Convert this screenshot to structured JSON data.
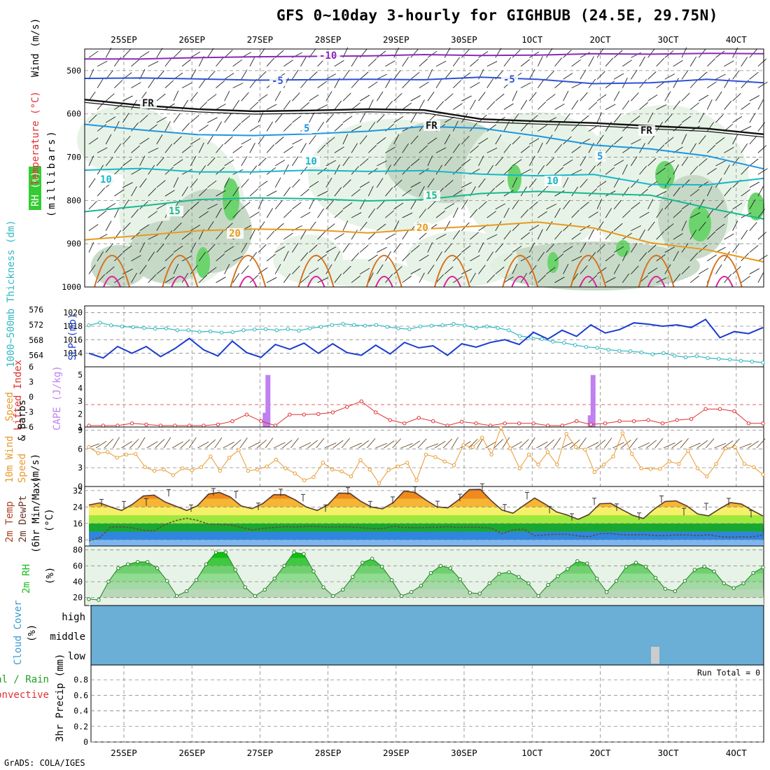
{
  "title": "GFS 0~10day 3-hourly for GIGHBUB (24.5E, 29.75N)",
  "credit": "GrADS: COLA/IGES",
  "colors": {
    "temp_neg10": "#8a2ab8",
    "temp_neg5": "#2f52d6",
    "temp_5": "#1e96e0",
    "temp_10": "#16b8c8",
    "temp_15": "#18b890",
    "temp_20": "#e89a1e",
    "temp_25": "#e0209a",
    "rh_light": "#e4f2e4",
    "rh_mid": "#c2d6c2",
    "rh_dark": "#a0b4a0",
    "rh_green": "#6cd46c",
    "slp": "#1a3cd0",
    "thickness": "#30b8c0",
    "lifted": "#e03030",
    "cape": "#c080f0",
    "wind10m": "#e89a30",
    "rh2m": "#20c020",
    "cloud": "#6baed6"
  },
  "chart_data": {
    "type": "meteogram",
    "x_dates": [
      "25SEP",
      "26SEP",
      "27SEP",
      "28SEP",
      "29SEP",
      "30SEP",
      "1OCT",
      "2OCT",
      "3OCT",
      "4OCT"
    ],
    "x_date_labels": [
      "25SEP",
      "26SEP",
      "27SEP",
      "28SEP",
      "29SEP",
      "30SEP",
      "1OCT",
      "2OCT",
      "3OCT",
      "4OCT"
    ],
    "panels": [
      {
        "id": "upper_air",
        "ylabel_parts": [
          "Wind (m/s)",
          "Temperature (°C)",
          "RH (%)",
          "(millibars)"
        ],
        "ylim": [
          1000,
          450
        ],
        "yticks": [
          500,
          600,
          700,
          800,
          900,
          1000
        ],
        "contour_labels": [
          "-10",
          "-5",
          "-5",
          "FR",
          "FR",
          "FR",
          "5",
          "5",
          "10",
          "10",
          "10",
          "15",
          "15",
          "20",
          "20"
        ],
        "isotherms": [
          {
            "name": "-10",
            "values": [
              473,
              473,
              470,
              468,
              467,
              466,
              463,
              465,
              464,
              461,
              462,
              460,
              461
            ]
          },
          {
            "name": "-5",
            "values": [
              518,
              517,
              519,
              522,
              521,
              520,
              521,
              515,
              520,
              530,
              528,
              520,
              528
            ]
          },
          {
            "name": "FR",
            "values": [
              567,
              580,
              589,
              594,
              592,
              589,
              591,
              612,
              617,
              621,
              628,
              634,
              647
            ]
          },
          {
            "name": "5",
            "values": [
              624,
              637,
              648,
              650,
              646,
              640,
              629,
              633,
              651,
              672,
              681,
              697,
              727
            ]
          },
          {
            "name": "10",
            "values": [
              730,
              726,
              734,
              734,
              730,
              733,
              731,
              739,
              743,
              740,
              763,
              764,
              749
            ]
          },
          {
            "name": "15",
            "values": [
              826,
              813,
              798,
              794,
              796,
              801,
              798,
              784,
              779,
              784,
              788,
              817,
              843
            ]
          },
          {
            "name": "20",
            "values": [
              891,
              881,
              870,
              866,
              868,
              875,
              866,
              859,
              850,
              864,
              898,
              914,
              942
            ]
          }
        ]
      },
      {
        "id": "slp_thickness",
        "ylabel_left": "1000~500mb Thickness (dm)",
        "ylabel_right": "SLP (mb)",
        "thickness_ticks": [
          564,
          568,
          572,
          576
        ],
        "slp_ticks": [
          1014,
          1016,
          1018,
          1020
        ],
        "slp_series": [
          1014,
          1013.3,
          1015,
          1014,
          1015,
          1013.5,
          1014.7,
          1016.2,
          1014.5,
          1013.6,
          1015.8,
          1014.1,
          1013.4,
          1015.3,
          1014.6,
          1015.5,
          1014.0,
          1015.4,
          1014.1,
          1013.7,
          1015.2,
          1013.9,
          1015.6,
          1014.8,
          1015.1,
          1013.7,
          1015.4,
          1014.9,
          1015.6,
          1016.0,
          1015.3,
          1017.1,
          1016.1,
          1017.4,
          1016.5,
          1018.2,
          1017.0,
          1017.5,
          1018.5,
          1018.3,
          1018.0,
          1018.2,
          1017.8,
          1019.0,
          1016.3,
          1017.2,
          1016.9,
          1017.8
        ],
        "thickness_series": [
          571.9,
          572.6,
          571.9,
          571.6,
          571.4,
          571.2,
          571.0,
          571.1,
          570.6,
          570.6,
          570.2,
          570.3,
          570.0,
          570.1,
          570.6,
          570.8,
          570.9,
          570.6,
          570.9,
          570.5,
          571.1,
          571.5,
          572.0,
          572.3,
          572.0,
          571.8,
          572.0,
          571.5,
          571.1,
          570.9,
          571.6,
          571.8,
          571.9,
          572.3,
          571.9,
          571.2,
          571.6,
          571.2,
          570.6,
          569.1,
          568.7,
          568.3,
          567.6,
          567.3,
          566.7,
          566.2,
          566.0,
          565.5,
          565.2,
          565.1,
          564.8,
          564.3,
          564.6,
          563.9,
          563.5,
          563.8,
          563.3,
          563.1,
          562.9,
          562.6,
          562.4,
          562.1
        ]
      },
      {
        "id": "stability",
        "ylabel_left": "Lifted Index",
        "ylabel_right": "CAPE (J/kg)",
        "li_ticks": [
          "6",
          "3",
          "0",
          "-3",
          "-6"
        ],
        "cape_ticks": [
          "1",
          "2",
          "3",
          "4",
          "5"
        ],
        "cape_bars": [
          {
            "x": 12.4,
            "value": 2.1
          },
          {
            "x": 12.6,
            "value": 5.0
          },
          {
            "x": 35.6,
            "value": 1.9
          },
          {
            "x": 35.8,
            "value": 5.0
          }
        ],
        "lifted_index": [
          6,
          6,
          6,
          5.6,
          5.8,
          6,
          6,
          6,
          6,
          5.8,
          5.2,
          4.0,
          5.2,
          6,
          4.0,
          4.0,
          3.9,
          3.6,
          2.6,
          1.6,
          3.6,
          5.0,
          5.6,
          4.6,
          5.2,
          6,
          5.3,
          5.6,
          6,
          5.6,
          5.6,
          5.6,
          6,
          6,
          5.2,
          5.8,
          5.6,
          5.2,
          5.2,
          5.0,
          5.6,
          5.0,
          4.8,
          3.0,
          3.0,
          3.4,
          5.6,
          5.6,
          6,
          6,
          6,
          6,
          5.6,
          5.8,
          5.6,
          5.0,
          6,
          6,
          5.0,
          5.6,
          6,
          6,
          5.4,
          6,
          6,
          6,
          6,
          6,
          6,
          6,
          6,
          6,
          5.8,
          6,
          6,
          6,
          6,
          6,
          6,
          6,
          6,
          6,
          6,
          6,
          6,
          6,
          5.6,
          5.2,
          6,
          6,
          6,
          6,
          6,
          6,
          6,
          6,
          6,
          5.2,
          6,
          6,
          6,
          6,
          6,
          6,
          6,
          6,
          5.4,
          6,
          6,
          6,
          6,
          6,
          6,
          6,
          5.8,
          6,
          6,
          6,
          6,
          5.6,
          6,
          6,
          6,
          6,
          6,
          6,
          6,
          6,
          6,
          6,
          6,
          6,
          6,
          6,
          6,
          5.2,
          6,
          6,
          6,
          6,
          6,
          5.2,
          6,
          6,
          6,
          6,
          6,
          6,
          6,
          6,
          6,
          6,
          6,
          6,
          5.6,
          6,
          6,
          6,
          6,
          6,
          6,
          6,
          6,
          6,
          6,
          6,
          6,
          6,
          6,
          6,
          6,
          5.2,
          4.4
        ]
      },
      {
        "id": "wind10m",
        "ylabel": "10m Wind Speed & Barbs (m/s)",
        "yticks": [
          0,
          3,
          6,
          9
        ],
        "ylim": [
          0,
          9.5
        ],
        "speed_series": [
          6.3,
          5.3,
          5.5,
          4.6,
          5.1,
          5.2,
          3.1,
          2.5,
          2.7,
          1.8,
          2.9,
          2.6,
          3.1,
          4.8,
          2.5,
          4.6,
          5.8,
          2.5,
          2.7,
          3.2,
          4.3,
          2.9,
          2.1,
          1.0,
          1.5,
          3.8,
          2.7,
          2.4,
          1.6,
          4.2,
          2.7,
          0.5,
          2.6,
          3.2,
          3.8,
          1.0,
          5.1,
          4.7,
          4.0,
          3.4,
          6.6,
          6.3,
          7.8,
          5.1,
          9.4,
          6.1,
          2.9,
          5.1,
          3.5,
          5.5,
          3.5,
          8.4,
          6.3,
          5.9,
          2.3,
          3.5,
          4.8,
          8.5,
          5.2,
          2.9,
          2.8,
          2.8,
          4.0,
          3.6,
          5.7,
          2.9,
          1.6,
          3.6,
          6.1,
          6.3,
          3.6,
          3.1,
          1.9
        ]
      },
      {
        "id": "temp2m",
        "ylabel": "2m Temp 2m DewPt (6hr Min/Max) (°C)",
        "yticks": [
          8,
          16,
          24,
          32
        ],
        "ylim": [
          5,
          34
        ],
        "temp_series": [
          25.0,
          26.0,
          24.0,
          22.3,
          25.3,
          29.4,
          29.8,
          26.5,
          24.4,
          22.3,
          24.7,
          30.3,
          31.1,
          28.9,
          24.5,
          23.2,
          25.7,
          30.0,
          30.0,
          27.4,
          24.0,
          22.3,
          25.2,
          30.8,
          30.7,
          26.8,
          24.0,
          23.1,
          26.2,
          31.8,
          31.1,
          27.4,
          24.1,
          23.6,
          27.5,
          32.5,
          32.6,
          27.1,
          22.5,
          21.0,
          24.8,
          28.4,
          25.3,
          21.6,
          20.1,
          18.0,
          20.4,
          25.6,
          25.8,
          22.8,
          20.0,
          18.4,
          23.0,
          26.7,
          27.0,
          24.5,
          20.6,
          19.7,
          23.1,
          26.2,
          25.5,
          22.4,
          19.6
        ],
        "dewpt_series": [
          7.5,
          9.1,
          14.2,
          14.3,
          13.9,
          12.6,
          12.3,
          15.5,
          17.4,
          18.5,
          17.5,
          15.6,
          15.5,
          15.3,
          14.1,
          12.8,
          13.6,
          14.0,
          14.4,
          14.2,
          14.5,
          14.5,
          14.2,
          14.3,
          14.3,
          13.9,
          13.6,
          13.5,
          14.6,
          14.0,
          13.9,
          14.0,
          14.1,
          14.4,
          14.0,
          14.2,
          14.1,
          13.7,
          11.0,
          12.8,
          13.2,
          10.0,
          10.5,
          10.7,
          10.7,
          9.9,
          9.5,
          11.0,
          11.1,
          10.5,
          10.4,
          10.6,
          10.1,
          10.1,
          10.4,
          10.4,
          10.1,
          10.5,
          9.6,
          9.3,
          9.5,
          9.4,
          10.4
        ]
      },
      {
        "id": "rh2m",
        "ylabel": "2m RH (%)",
        "yticks": [
          20,
          40,
          60,
          80
        ],
        "ylim": [
          10,
          85
        ],
        "rh_series": [
          18,
          17,
          40,
          57,
          62,
          65,
          65,
          57,
          41,
          22,
          28,
          42,
          62,
          77,
          77,
          55,
          33,
          22,
          30,
          44,
          60,
          77,
          75,
          53,
          33,
          22,
          30,
          46,
          64,
          69,
          59,
          42,
          22,
          27,
          35,
          51,
          60,
          57,
          43,
          26,
          25,
          38,
          50,
          52,
          46,
          38,
          22,
          36,
          47,
          56,
          66,
          63,
          44,
          27,
          41,
          59,
          64,
          59,
          45,
          31,
          28,
          41,
          55,
          59,
          53,
          38,
          32,
          38,
          51,
          58
        ],
        "rh_times": []
      },
      {
        "id": "cloud",
        "ylabel": "Cloud Cover (%)",
        "levels": [
          "high",
          "middle",
          "low"
        ],
        "cloud_gap": {
          "x": 3.0
        }
      },
      {
        "id": "precip",
        "ylabel_left": "Total / Rain",
        "ylabel_left2": "Convective",
        "ylabel": "3hr Precip (mm)",
        "yticks": [
          "0",
          "0.2",
          "0.4",
          "0.6",
          "0.8"
        ],
        "run_total": "Run Total = 0"
      }
    ]
  }
}
